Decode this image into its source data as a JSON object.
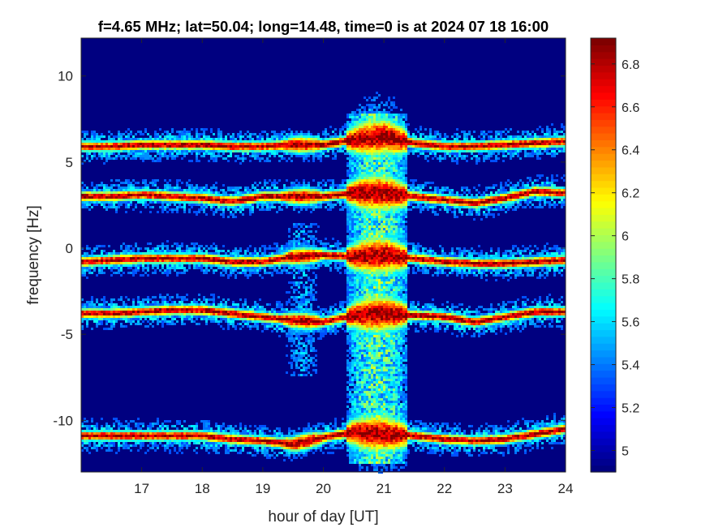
{
  "chart_data": {
    "type": "heatmap",
    "title": "f=4.65 MHz;  lat=50.04; long=14.48, time=0 is at 2024 07 18 16:00",
    "xlabel": "hour of day [UT]",
    "ylabel": "frequency [Hz]",
    "xlim": [
      16,
      24
    ],
    "ylim": [
      -13,
      12.2
    ],
    "x_ticks": [
      17,
      18,
      19,
      20,
      21,
      22,
      23,
      24
    ],
    "x_tick_labels": [
      "17",
      "18",
      "19",
      "20",
      "21",
      "22",
      "23",
      "24"
    ],
    "y_ticks": [
      10,
      5,
      0,
      -5,
      -10
    ],
    "y_tick_labels": [
      "10",
      "5",
      "0",
      "-5",
      "-10"
    ],
    "colorbar": {
      "colormap": "jet",
      "clim": [
        4.9,
        6.92
      ],
      "ticks": [
        6.8,
        6.6,
        6.4,
        6.2,
        6,
        5.8,
        5.6,
        5.4,
        5.2,
        5
      ],
      "tick_labels": [
        "6.8",
        "6.6",
        "6.4",
        "6.2",
        "6",
        "5.8",
        "5.6",
        "5.4",
        "5.2",
        "5"
      ]
    },
    "background_value": 4.9,
    "traces": [
      {
        "name": "trace-1",
        "points": [
          [
            16.0,
            5.9
          ],
          [
            16.5,
            5.9
          ],
          [
            17.0,
            6.0
          ],
          [
            17.5,
            6.0
          ],
          [
            18.0,
            6.0
          ],
          [
            18.5,
            5.9
          ],
          [
            19.0,
            5.9
          ],
          [
            19.5,
            6.0
          ],
          [
            20.0,
            6.0
          ],
          [
            20.5,
            6.3
          ],
          [
            21.0,
            6.5
          ],
          [
            21.5,
            6.1
          ],
          [
            22.0,
            5.9
          ],
          [
            22.5,
            5.9
          ],
          [
            23.0,
            6.0
          ],
          [
            23.5,
            6.1
          ],
          [
            24.0,
            6.2
          ]
        ]
      },
      {
        "name": "trace-2",
        "points": [
          [
            16.0,
            3.0
          ],
          [
            16.5,
            3.0
          ],
          [
            17.0,
            3.1
          ],
          [
            17.5,
            3.0
          ],
          [
            18.0,
            2.9
          ],
          [
            18.5,
            2.7
          ],
          [
            19.0,
            3.0
          ],
          [
            19.5,
            3.0
          ],
          [
            20.0,
            3.0
          ],
          [
            20.5,
            3.2
          ],
          [
            21.0,
            3.2
          ],
          [
            21.5,
            3.0
          ],
          [
            22.0,
            2.8
          ],
          [
            22.5,
            2.6
          ],
          [
            23.0,
            2.9
          ],
          [
            23.5,
            3.3
          ],
          [
            24.0,
            3.2
          ]
        ]
      },
      {
        "name": "trace-3",
        "points": [
          [
            16.0,
            -0.8
          ],
          [
            16.5,
            -0.7
          ],
          [
            17.0,
            -0.6
          ],
          [
            17.5,
            -0.6
          ],
          [
            18.0,
            -0.6
          ],
          [
            18.5,
            -0.8
          ],
          [
            19.0,
            -0.8
          ],
          [
            19.5,
            -0.5
          ],
          [
            20.0,
            -0.4
          ],
          [
            20.5,
            -0.5
          ],
          [
            21.0,
            -0.4
          ],
          [
            21.5,
            -0.6
          ],
          [
            22.0,
            -0.8
          ],
          [
            22.5,
            -0.9
          ],
          [
            23.0,
            -0.9
          ],
          [
            23.5,
            -0.8
          ],
          [
            24.0,
            -0.7
          ]
        ]
      },
      {
        "name": "trace-4",
        "points": [
          [
            16.0,
            -3.8
          ],
          [
            16.5,
            -3.8
          ],
          [
            17.0,
            -3.7
          ],
          [
            17.5,
            -3.6
          ],
          [
            18.0,
            -3.6
          ],
          [
            18.5,
            -3.8
          ],
          [
            19.0,
            -4.0
          ],
          [
            19.5,
            -4.2
          ],
          [
            20.0,
            -4.3
          ],
          [
            20.5,
            -3.9
          ],
          [
            21.0,
            -3.8
          ],
          [
            21.5,
            -3.9
          ],
          [
            22.0,
            -4.0
          ],
          [
            22.5,
            -4.3
          ],
          [
            23.0,
            -4.0
          ],
          [
            23.5,
            -3.7
          ],
          [
            24.0,
            -3.7
          ]
        ]
      },
      {
        "name": "trace-5",
        "points": [
          [
            16.0,
            -10.9
          ],
          [
            16.5,
            -10.9
          ],
          [
            17.0,
            -10.9
          ],
          [
            17.5,
            -10.9
          ],
          [
            18.0,
            -10.9
          ],
          [
            18.5,
            -11.1
          ],
          [
            19.0,
            -11.2
          ],
          [
            19.5,
            -11.4
          ],
          [
            20.0,
            -11.0
          ],
          [
            20.5,
            -10.7
          ],
          [
            21.0,
            -10.8
          ],
          [
            21.5,
            -10.9
          ],
          [
            22.0,
            -11.1
          ],
          [
            22.5,
            -11.2
          ],
          [
            23.0,
            -11.1
          ],
          [
            23.5,
            -10.8
          ],
          [
            24.0,
            -10.5
          ]
        ]
      }
    ],
    "blobs": [
      {
        "x": [
          20.4,
          21.4
        ],
        "y": [
          -13,
          8
        ],
        "intensity": 0.9
      },
      {
        "x": [
          19.3,
          20.0
        ],
        "y": [
          -7.5,
          2.0
        ],
        "intensity": 0.55
      }
    ]
  }
}
